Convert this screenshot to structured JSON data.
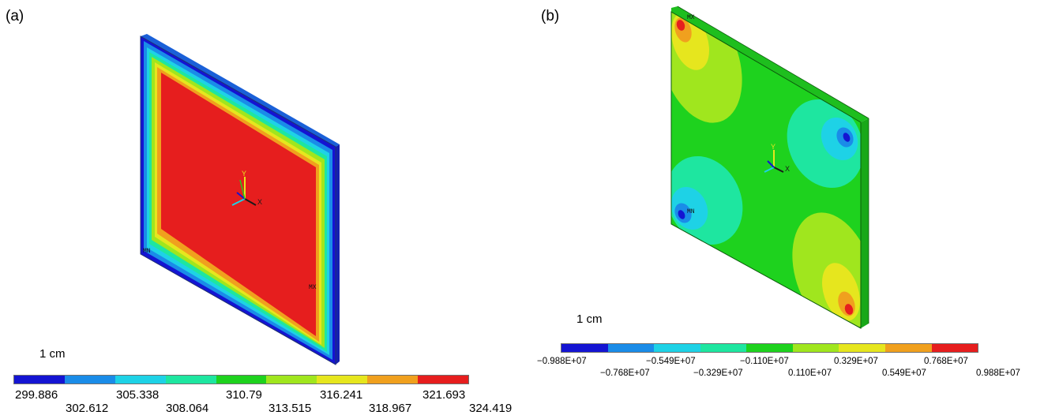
{
  "panel_a": {
    "label": "(a)",
    "scale": "1 cm",
    "markers": {
      "mn": "MN",
      "mx": "MX"
    },
    "axes": {
      "x": "X",
      "y": "Y"
    },
    "legend": {
      "colors": [
        "#1414d2",
        "#1a8ce8",
        "#1ed2e6",
        "#1ee6a0",
        "#1ed21e",
        "#a0e61e",
        "#e6e61e",
        "#f0a01e",
        "#e61e1e"
      ],
      "ticks_top": [
        "299.886",
        "305.338",
        "310.79",
        "316.241",
        "321.693"
      ],
      "ticks_bottom": [
        "302.612",
        "308.064",
        "313.515",
        "318.967",
        "324.419"
      ]
    }
  },
  "panel_b": {
    "label": "(b)",
    "scale": "1 cm",
    "markers": {
      "mn": "MN",
      "mx": "MX"
    },
    "axes": {
      "x": "X",
      "y": "Y"
    },
    "legend": {
      "colors": [
        "#1414d2",
        "#1a8ce8",
        "#1ed2e6",
        "#1ee6a0",
        "#1ed21e",
        "#a0e61e",
        "#e6e61e",
        "#f0a01e",
        "#e61e1e"
      ],
      "ticks_top": [
        "−0.988E+07",
        "−0.549E+07",
        "−0.110E+07",
        "0.329E+07",
        "0.768E+07"
      ],
      "ticks_bottom": [
        "−0.768E+07",
        "−0.329E+07",
        "0.110E+07",
        "0.549E+07",
        "0.988E+07"
      ]
    }
  }
}
